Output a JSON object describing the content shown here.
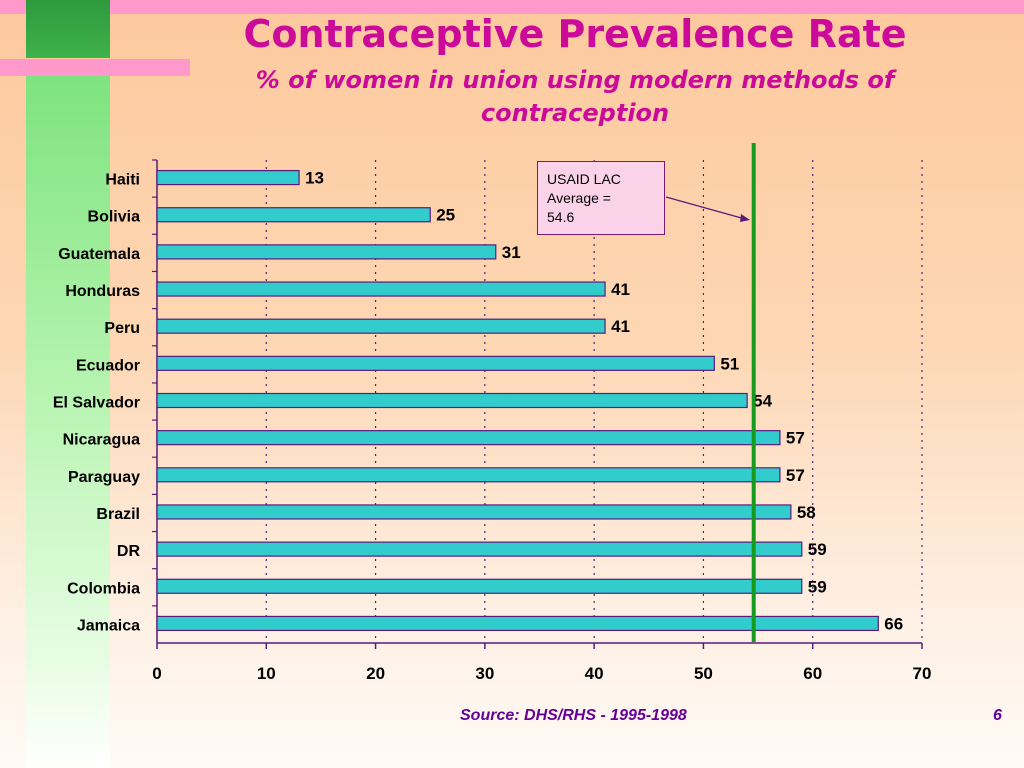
{
  "slide": {
    "title": "Contraceptive Prevalence Rate",
    "subtitle": "% of women in union using modern methods of contraception",
    "source": "Source:  DHS/RHS - 1995-1998",
    "page_number": "6"
  },
  "callout": {
    "text": "USAID LAC\nAverage  =\n54.6"
  },
  "colors": {
    "bar_fill": "#33cccc",
    "bar_stroke": "#5a1a7a",
    "average_line": "#169b1f",
    "title": "#cc0a99"
  },
  "chart_data": {
    "type": "bar",
    "orientation": "horizontal",
    "categories": [
      "Haiti",
      "Bolivia",
      "Guatemala",
      "Honduras",
      "Peru",
      "Ecuador",
      "El Salvador",
      "Nicaragua",
      "Paraguay",
      "Brazil",
      "DR",
      "Colombia",
      "Jamaica"
    ],
    "values": [
      13,
      25,
      31,
      41,
      41,
      51,
      54,
      57,
      57,
      58,
      59,
      59,
      66
    ],
    "value_labels": [
      "13",
      "25",
      "31",
      "41",
      "41",
      "51",
      "54",
      "57",
      "57",
      "58",
      "59",
      "59",
      "66"
    ],
    "xlim": [
      0,
      70
    ],
    "xticks": [
      0,
      10,
      20,
      30,
      40,
      50,
      60,
      70
    ],
    "reference_line": {
      "value": 54.6,
      "label": "USAID LAC Average = 54.6"
    },
    "grid": "vertical dotted"
  }
}
